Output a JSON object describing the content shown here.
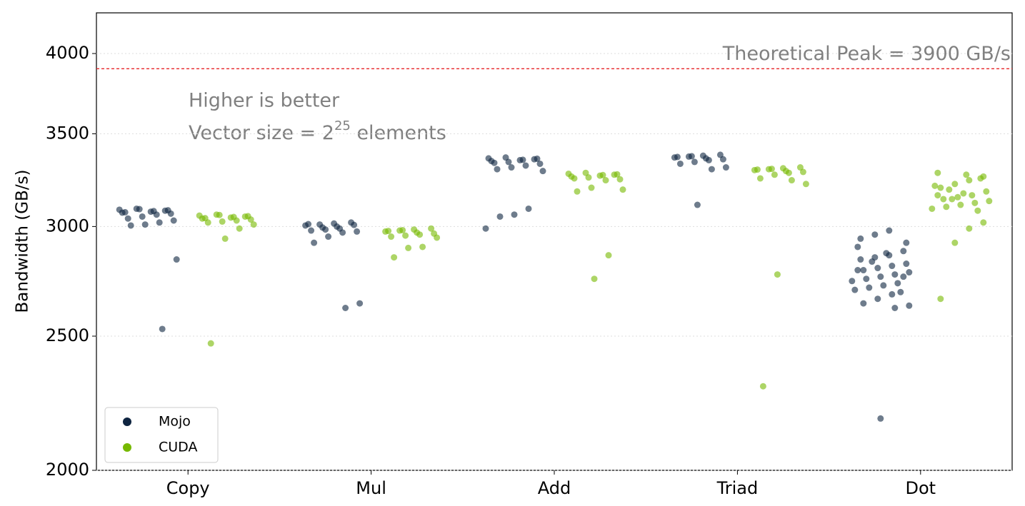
{
  "chart_data": {
    "type": "strip",
    "y_label": "Bandwidth (GB/s)",
    "categories": [
      "Copy",
      "Mul",
      "Add",
      "Triad",
      "Dot"
    ],
    "log_scale": true,
    "ylim": [
      2000,
      4280
    ],
    "yticks": [
      2000,
      2500,
      3000,
      3500,
      4000
    ],
    "grid": true,
    "legend": "lower left",
    "reference_line": {
      "value": 3900,
      "label": "Theoretical Peak = 3900 GB/s",
      "color": "#e8262a"
    },
    "annotations": {
      "line1": "Higher is better",
      "line2": {
        "prefix": "Vector size = 2",
        "superscript": "25",
        "suffix": " elements"
      }
    },
    "series": [
      {
        "name": "Mojo",
        "color": "#0e2440",
        "values": [
          [
            3085,
            3080,
            3075,
            3090,
            3070,
            3082,
            3078,
            3088,
            3072,
            3065,
            3060,
            3050,
            3040,
            3030,
            3020,
            3010,
            3005,
            2840,
            2530
          ],
          [
            3015,
            3010,
            3005,
            3020,
            3000,
            2995,
            3012,
            3008,
            2990,
            2985,
            2980,
            2975,
            2970,
            2950,
            2920,
            2640,
            2620
          ],
          [
            3360,
            3355,
            3350,
            3365,
            3345,
            3358,
            3352,
            3340,
            3335,
            3330,
            3320,
            3310,
            3300,
            3290,
            3090,
            3060,
            3050,
            2990
          ],
          [
            3375,
            3370,
            3365,
            3380,
            3360,
            3372,
            3368,
            3355,
            3350,
            3340,
            3330,
            3310,
            3300,
            3110
          ],
          [
            2900,
            2880,
            2860,
            2850,
            2840,
            2820,
            2810,
            2800,
            2790,
            2780,
            2770,
            2760,
            2750,
            2740,
            2730,
            2720,
            2710,
            2700,
            2690,
            2870,
            2830,
            2790,
            2760,
            2980,
            2960,
            2940,
            2920,
            2680,
            2660,
            2640,
            2630,
            2620,
            2180
          ]
        ]
      },
      {
        "name": "CUDA",
        "color": "#76b900",
        "values": [
          [
            3055,
            3050,
            3045,
            3060,
            3040,
            3052,
            3048,
            3058,
            3042,
            3035,
            3030,
            3025,
            3020,
            3010,
            2990,
            2940,
            2470
          ],
          [
            2985,
            2980,
            2975,
            2990,
            2970,
            2982,
            2978,
            2965,
            2960,
            2955,
            2950,
            2945,
            2900,
            2895,
            2850
          ],
          [
            3275,
            3270,
            3265,
            3280,
            3260,
            3272,
            3268,
            3255,
            3250,
            3245,
            3240,
            3200,
            3180,
            3190,
            2860,
            2750
          ],
          [
            3305,
            3300,
            3295,
            3310,
            3290,
            3302,
            3298,
            3285,
            3280,
            3270,
            3250,
            3220,
            3240,
            2770,
            2300
          ],
          [
            3280,
            3260,
            3240,
            3220,
            3200,
            3180,
            3160,
            3150,
            3140,
            3130,
            3120,
            3110,
            3100,
            3090,
            3080,
            3170,
            3190,
            3210,
            3250,
            3270,
            3140,
            3160,
            3020,
            2990,
            2920,
            2660
          ]
        ]
      }
    ]
  }
}
